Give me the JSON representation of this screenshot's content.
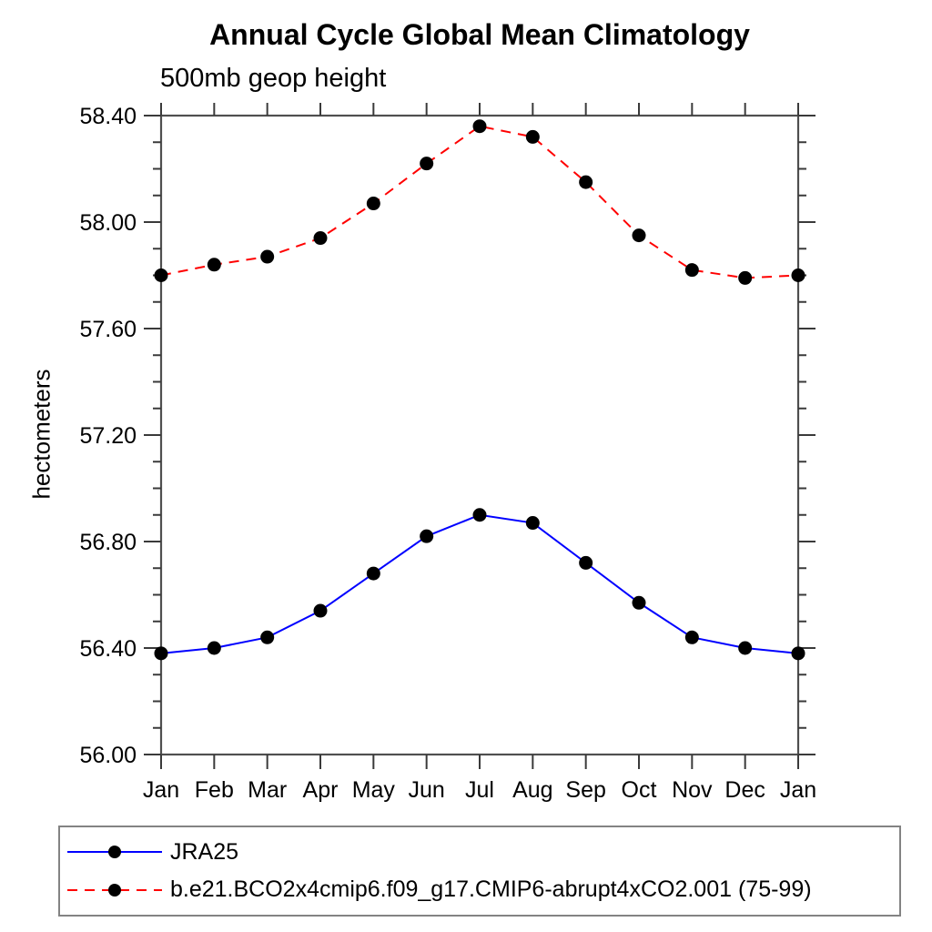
{
  "chart_data": {
    "type": "line",
    "title": "Annual Cycle Global Mean Climatology",
    "subtitle": "500mb geop height",
    "ylabel": "hectometers",
    "xlabel": "",
    "categories": [
      "Jan",
      "Feb",
      "Mar",
      "Apr",
      "May",
      "Jun",
      "Jul",
      "Aug",
      "Sep",
      "Oct",
      "Nov",
      "Dec",
      "Jan"
    ],
    "ylim": [
      56.0,
      58.4
    ],
    "ytick_major_step": 0.4,
    "ytick_minor_step": 0.1,
    "ytick_labels": [
      "56.00",
      "56.40",
      "56.80",
      "57.20",
      "57.60",
      "58.00",
      "58.40"
    ],
    "grid": false,
    "legend_position": "bottom-left boxed",
    "axis_color": "#4f4f4f",
    "marker_color": "#000000",
    "series": [
      {
        "name": "JRA25",
        "color": "#0000ff",
        "line_style": "solid",
        "values": [
          56.38,
          56.4,
          56.44,
          56.54,
          56.68,
          56.82,
          56.9,
          56.87,
          56.72,
          56.57,
          56.44,
          56.4,
          56.38
        ]
      },
      {
        "name": "b.e21.BCO2x4cmip6.f09_g17.CMIP6-abrupt4xCO2.001 (75-99)",
        "color": "#ff0000",
        "line_style": "dashed",
        "values": [
          57.8,
          57.84,
          57.87,
          57.94,
          58.07,
          58.22,
          58.36,
          58.32,
          58.15,
          57.95,
          57.82,
          57.79,
          57.8
        ]
      }
    ]
  }
}
